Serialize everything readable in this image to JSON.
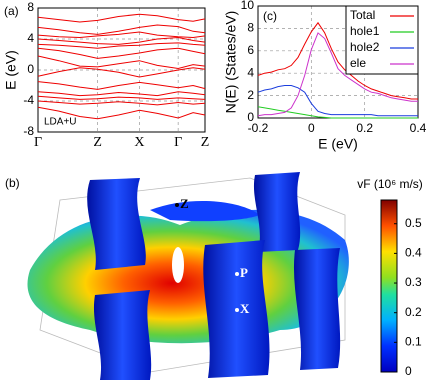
{
  "chart_data": [
    {
      "type": "line",
      "panel_label": "(a)",
      "ylabel": "E (eV)",
      "annotation": "LDA+U",
      "color": "#ee0000",
      "grid": true,
      "x": [
        0,
        0.35,
        0.7,
        1.0,
        1.35,
        1.7,
        2.0,
        2.35,
        2.6,
        2.8
      ],
      "xlim": [
        0,
        2.8
      ],
      "xticks": [
        {
          "value": 0,
          "label": "Γ"
        },
        {
          "value": 1.0,
          "label": "Z"
        },
        {
          "value": 1.7,
          "label": "X"
        },
        {
          "value": 2.35,
          "label": "Γ"
        },
        {
          "value": 2.8,
          "label": "Z"
        }
      ],
      "ylim": [
        -8,
        8
      ],
      "yticks": [
        -8,
        -4,
        0,
        4,
        8
      ],
      "series": [
        {
          "values": [
            6.8,
            6.5,
            6.2,
            6.4,
            6.9,
            7.2,
            7.0,
            6.5,
            6.3,
            6.6
          ]
        },
        {
          "values": [
            5.5,
            5.2,
            4.8,
            4.6,
            5.0,
            5.5,
            5.8,
            5.6,
            5.0,
            4.8
          ]
        },
        {
          "values": [
            4.5,
            4.3,
            4.2,
            4.4,
            4.6,
            4.9,
            4.5,
            4.3,
            4.2,
            4.4
          ]
        },
        {
          "values": [
            4.0,
            3.8,
            3.6,
            3.4,
            3.3,
            3.6,
            4.0,
            4.2,
            3.8,
            3.6
          ]
        },
        {
          "values": [
            3.3,
            3.2,
            3.0,
            2.8,
            3.1,
            3.2,
            3.4,
            3.5,
            3.3,
            3.2
          ]
        },
        {
          "values": [
            2.8,
            2.5,
            2.0,
            1.5,
            1.8,
            2.2,
            2.6,
            2.8,
            2.4,
            2.1
          ]
        },
        {
          "values": [
            1.8,
            1.2,
            0.5,
            0.4,
            0.8,
            1.2,
            0.6,
            0.2,
            0.7,
            0.5
          ]
        },
        {
          "values": [
            -0.8,
            -0.2,
            0.3,
            0.1,
            -0.3,
            -0.9,
            -0.5,
            0.0,
            0.3,
            0.1
          ]
        },
        {
          "values": [
            -1.5,
            -1.8,
            -2.2,
            -2.5,
            -2.0,
            -1.6,
            -1.9,
            -2.3,
            -2.0,
            -2.4
          ]
        },
        {
          "values": [
            -2.8,
            -3.0,
            -3.3,
            -3.2,
            -2.9,
            -3.1,
            -3.3,
            -2.8,
            -3.0,
            -3.2
          ]
        },
        {
          "values": [
            -3.4,
            -3.6,
            -3.8,
            -3.7,
            -3.5,
            -3.6,
            -3.8,
            -3.6,
            -3.7,
            -3.8
          ]
        },
        {
          "values": [
            -4.0,
            -4.2,
            -4.4,
            -4.3,
            -4.1,
            -4.3,
            -4.5,
            -4.2,
            -4.4,
            -4.3
          ]
        },
        {
          "values": [
            -4.8,
            -5.3,
            -6.0,
            -6.3,
            -5.8,
            -5.2,
            -5.6,
            -6.2,
            -5.5,
            -5.8
          ]
        }
      ]
    },
    {
      "type": "line",
      "panel_label": "(c)",
      "ylabel": "N(E) (States/eV)",
      "xlabel": "E (eV)",
      "grid": true,
      "legend": "upper right",
      "x": [
        -0.2,
        -0.175,
        -0.15,
        -0.125,
        -0.1,
        -0.075,
        -0.05,
        -0.025,
        0,
        0.025,
        0.05,
        0.075,
        0.1,
        0.125,
        0.15,
        0.175,
        0.2,
        0.225,
        0.25,
        0.275,
        0.3,
        0.325,
        0.35,
        0.375,
        0.4
      ],
      "xlim": [
        -0.2,
        0.4
      ],
      "xticks": [
        -0.2,
        0,
        0.2,
        0.4
      ],
      "ylim": [
        0,
        10
      ],
      "yticks": [
        0,
        2,
        4,
        6,
        8,
        10
      ],
      "series": [
        {
          "name": "Total",
          "color": "#ee0000",
          "values": [
            3.8,
            4.0,
            4.1,
            4.3,
            4.4,
            4.7,
            5.4,
            6.6,
            7.7,
            8.5,
            7.6,
            6.2,
            5.0,
            4.3,
            3.8,
            3.3,
            2.9,
            2.6,
            2.4,
            2.2,
            2.0,
            1.9,
            1.8,
            1.7,
            1.7
          ]
        },
        {
          "name": "hole1",
          "color": "#22cc22",
          "values": [
            1.0,
            0.9,
            0.8,
            0.7,
            0.6,
            0.5,
            0.4,
            0.3,
            0.2,
            0.1,
            0.05,
            0,
            0,
            0,
            0,
            0,
            0,
            0,
            0,
            0,
            0,
            0,
            0,
            0,
            0
          ]
        },
        {
          "name": "hole2",
          "color": "#1a3ddd",
          "values": [
            2.3,
            2.5,
            2.6,
            2.8,
            2.9,
            2.9,
            2.7,
            2.3,
            1.3,
            0.6,
            0.4,
            0.3,
            0.3,
            0.3,
            0.3,
            0.3,
            0.3,
            0.3,
            0.2,
            0.2,
            0.2,
            0.2,
            0.2,
            0.2,
            0.2
          ]
        },
        {
          "name": "ele",
          "color": "#cc33cc",
          "values": [
            0.2,
            0.3,
            0.3,
            0.4,
            0.5,
            0.9,
            2.0,
            3.8,
            6.1,
            7.6,
            7.1,
            5.8,
            4.4,
            3.8,
            3.4,
            3.0,
            2.6,
            2.3,
            2.2,
            2.0,
            1.8,
            1.7,
            1.6,
            1.5,
            1.5
          ]
        }
      ]
    },
    {
      "type": "colorbar",
      "panel_label": "(b)",
      "label": "vF (10⁶ m/s)",
      "ylim": [
        0,
        0.58
      ],
      "yticks": [
        0,
        0.1,
        0.2,
        0.3,
        0.4,
        0.5
      ],
      "points": [
        "Z",
        "P",
        "X"
      ]
    }
  ]
}
